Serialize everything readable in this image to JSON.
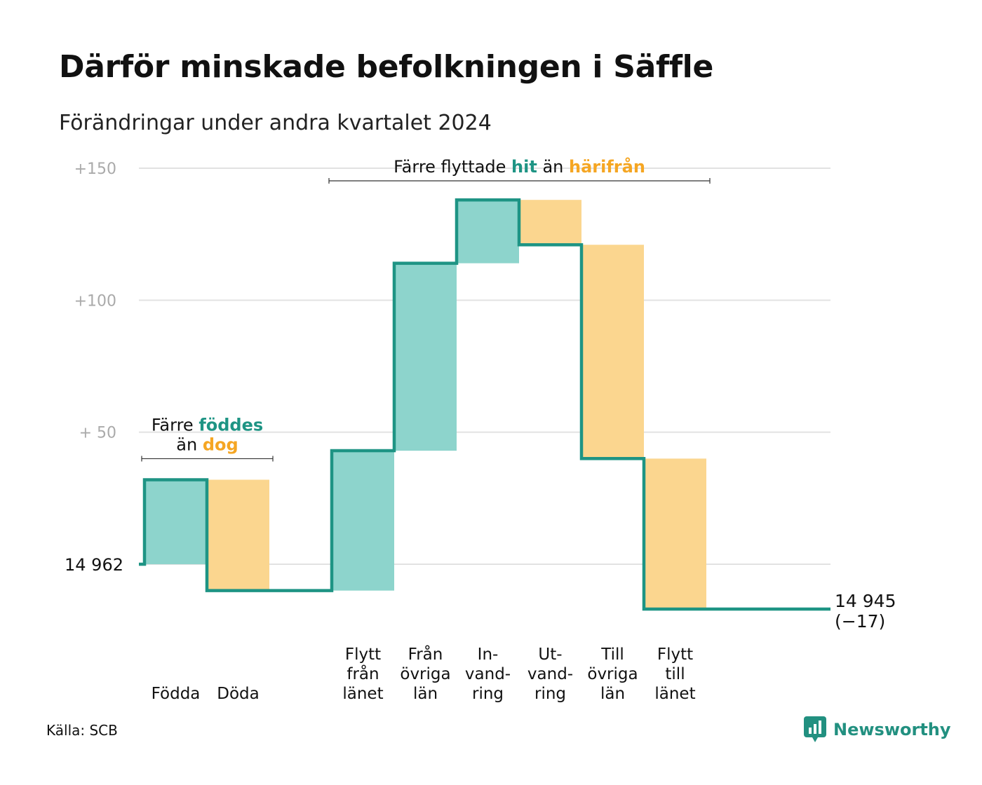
{
  "title": "Därför minskade befolkningen i Säffle",
  "subtitle": "Förändringar under andra kvartalet 2024",
  "source": "Källa: SCB",
  "brand": {
    "name": "Newsworthy",
    "icon": "newsworthy-logo-icon"
  },
  "colors": {
    "increase_fill": "#8dd4cc",
    "decrease_fill": "#fbd68f",
    "line": "#1e9484",
    "increase_text": "#1e9484",
    "decrease_text": "#f5a623",
    "grid": "#e2e2e2",
    "tick_text": "#aaaaaa"
  },
  "chart_data": {
    "type": "waterfall",
    "start_value": 14962,
    "start_label": "14  962",
    "end_value": 14945,
    "end_label": "14 945",
    "end_change_label": "(−17)",
    "ylim": [
      -17,
      150
    ],
    "yticks": [
      {
        "value": 150,
        "label": "+150"
      },
      {
        "value": 100,
        "label": "+100"
      },
      {
        "value": 50,
        "label": "+  50"
      },
      {
        "value": 0,
        "label": ""
      }
    ],
    "steps": [
      {
        "label": [
          "Födda"
        ],
        "change": 32,
        "kind": "increase"
      },
      {
        "label": [
          "Döda"
        ],
        "change": -42,
        "kind": "decrease"
      },
      {
        "label": [],
        "change": 0,
        "kind": "gap"
      },
      {
        "label": [
          "Flytt",
          "från",
          "länet"
        ],
        "change": 53,
        "kind": "increase"
      },
      {
        "label": [
          "Från",
          "övriga",
          "län"
        ],
        "change": 71,
        "kind": "increase"
      },
      {
        "label": [
          "In-",
          "vand-",
          "ring"
        ],
        "change": 24,
        "kind": "increase"
      },
      {
        "label": [
          "Ut-",
          "vand-",
          "ring"
        ],
        "change": -17,
        "kind": "decrease"
      },
      {
        "label": [
          "Till",
          "övriga",
          "län"
        ],
        "change": -81,
        "kind": "decrease"
      },
      {
        "label": [
          "Flytt",
          "till",
          "länet"
        ],
        "change": -57,
        "kind": "decrease"
      }
    ],
    "annotations": [
      {
        "span": [
          0,
          1
        ],
        "lines": [
          [
            {
              "text": "Färre ",
              "style": "plain"
            },
            {
              "text": "föddes",
              "style": "increase"
            }
          ],
          [
            {
              "text": "än ",
              "style": "plain"
            },
            {
              "text": "dog",
              "style": "decrease"
            }
          ]
        ]
      },
      {
        "span": [
          3,
          8
        ],
        "lines": [
          [
            {
              "text": "Färre flyttade ",
              "style": "plain"
            },
            {
              "text": "hit",
              "style": "increase"
            },
            {
              "text": " än ",
              "style": "plain"
            },
            {
              "text": "härifrån",
              "style": "decrease"
            }
          ]
        ]
      }
    ]
  }
}
